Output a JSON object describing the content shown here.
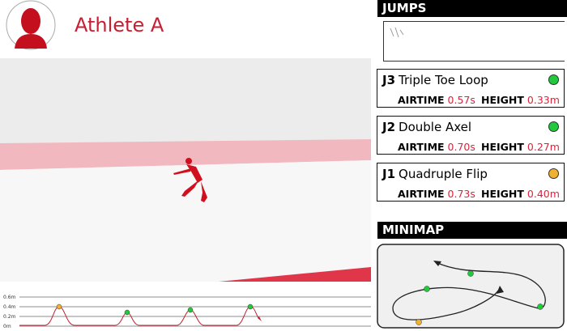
{
  "header": {
    "athlete": "Athlete A"
  },
  "jumps": {
    "title": "JUMPS",
    "cards": [
      {
        "id": "J3",
        "name": "Triple Toe Loop",
        "airtime_label": "AIRTIME",
        "airtime": "0.57s",
        "height_label": "HEIGHT",
        "height": "0.33m"
      },
      {
        "id": "J2",
        "name": "Double Axel",
        "airtime_label": "AIRTIME",
        "airtime": "0.70s",
        "height_label": "HEIGHT",
        "height": "0.27m"
      },
      {
        "id": "J1",
        "name": "Quadruple Flip",
        "airtime_label": "AIRTIME",
        "airtime": "0.73s",
        "height_label": "HEIGHT",
        "height": "0.40m"
      }
    ]
  },
  "minimap": {
    "title": "MINIMAP"
  },
  "height_graph": {
    "labels": [
      "0.6m",
      "0.4m",
      "0.2m",
      "0m"
    ]
  }
}
